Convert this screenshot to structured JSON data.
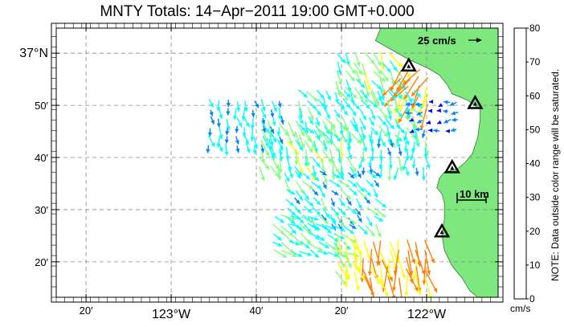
{
  "title": "MNTY Totals: 14−Apr−2011 19:00 GMT+0.000",
  "map": {
    "lat_ticks": [
      {
        "value": 37.0,
        "label": "37°N"
      },
      {
        "value": 36.8333,
        "label": "50′"
      },
      {
        "value": 36.6667,
        "label": "40′"
      },
      {
        "value": 36.5,
        "label": "30′"
      },
      {
        "value": 36.3333,
        "label": "20′"
      }
    ],
    "lon_ticks": [
      {
        "value": -123.3333,
        "label": "20′"
      },
      {
        "value": -123.0,
        "label": "123°W"
      },
      {
        "value": -122.6667,
        "label": "40′"
      },
      {
        "value": -122.3333,
        "label": "20′"
      },
      {
        "value": -122.0,
        "label": "122°W"
      }
    ],
    "lon_range": [
      -123.45,
      -121.72
    ],
    "lat_range": [
      36.22,
      37.08
    ],
    "land_color": "#7ee87e",
    "ocean_color": "#ffffff",
    "scale_vector_label": "25 cm/s",
    "scale_bar_label": "10 km",
    "stations": [
      {
        "lon": -122.07,
        "lat": 36.96
      },
      {
        "lon": -121.81,
        "lat": 36.84
      },
      {
        "lon": -121.9,
        "lat": 36.635
      },
      {
        "lon": -121.94,
        "lat": 36.43
      }
    ],
    "coastline": [
      [
        -122.18,
        37.08
      ],
      [
        -122.2,
        37.04
      ],
      [
        -122.07,
        36.98
      ],
      [
        -121.99,
        36.95
      ],
      [
        -121.95,
        36.93
      ],
      [
        -121.92,
        36.9
      ],
      [
        -121.9,
        36.87
      ],
      [
        -121.84,
        36.85
      ],
      [
        -121.79,
        36.82
      ],
      [
        -121.79,
        36.79
      ],
      [
        -121.8,
        36.73
      ],
      [
        -121.82,
        36.68
      ],
      [
        -121.85,
        36.65
      ],
      [
        -121.88,
        36.63
      ],
      [
        -121.93,
        36.62
      ],
      [
        -121.95,
        36.6
      ],
      [
        -121.96,
        36.57
      ],
      [
        -121.94,
        36.55
      ],
      [
        -121.93,
        36.52
      ],
      [
        -121.93,
        36.47
      ],
      [
        -121.94,
        36.42
      ],
      [
        -121.93,
        36.37
      ],
      [
        -121.9,
        36.32
      ],
      [
        -121.86,
        36.28
      ],
      [
        -121.83,
        36.24
      ],
      [
        -121.8,
        36.22
      ],
      [
        -121.72,
        36.22
      ],
      [
        -121.72,
        37.08
      ]
    ]
  },
  "colorbar": {
    "min": 0,
    "max": 80,
    "ticks": [
      "0",
      "10",
      "20",
      "30",
      "40",
      "50",
      "60",
      "70",
      "80"
    ],
    "colors": [
      "#0000ff",
      "#0080ff",
      "#00ffff",
      "#80ff80",
      "#ffff00",
      "#ff8000",
      "#ff0000",
      "#800000"
    ],
    "unit": "cm/s",
    "note": "NOTE: Data outside color range will be saturated."
  },
  "vector_field": {
    "description_units": "speed cm/s, direction degrees clockwise from north (toward)",
    "regions": [
      {
        "lon": [
          -122.35,
          -122.1
        ],
        "lat": [
          36.88,
          37.0
        ],
        "speed": 35,
        "dir": 150
      },
      {
        "lon": [
          -122.1,
          -121.98
        ],
        "lat": [
          36.82,
          36.95
        ],
        "speed": 52,
        "dir": 210
      },
      {
        "lon": [
          -122.5,
          -122.05
        ],
        "lat": [
          36.72,
          36.88
        ],
        "speed": 28,
        "dir": 150
      },
      {
        "lon": [
          -122.05,
          -121.85
        ],
        "lat": [
          36.75,
          36.84
        ],
        "speed": 12,
        "dir": 260
      },
      {
        "lon": [
          -122.65,
          -122.3
        ],
        "lat": [
          36.62,
          36.78
        ],
        "speed": 33,
        "dir": 160
      },
      {
        "lon": [
          -122.25,
          -121.98
        ],
        "lat": [
          36.62,
          36.75
        ],
        "speed": 24,
        "dir": 180
      },
      {
        "lon": [
          -122.55,
          -122.2
        ],
        "lat": [
          36.45,
          36.62
        ],
        "speed": 25,
        "dir": 140
      },
      {
        "lon": [
          -122.85,
          -122.55
        ],
        "lat": [
          36.7,
          36.85
        ],
        "speed": 22,
        "dir": 170
      },
      {
        "lon": [
          -122.6,
          -122.3
        ],
        "lat": [
          36.35,
          36.48
        ],
        "speed": 30,
        "dir": 125
      },
      {
        "lon": [
          -122.25,
          -121.98
        ],
        "lat": [
          36.28,
          36.4
        ],
        "speed": 52,
        "dir": 170
      },
      {
        "lon": [
          -122.35,
          -122.25
        ],
        "lat": [
          36.28,
          36.42
        ],
        "speed": 40,
        "dir": 160
      }
    ]
  }
}
